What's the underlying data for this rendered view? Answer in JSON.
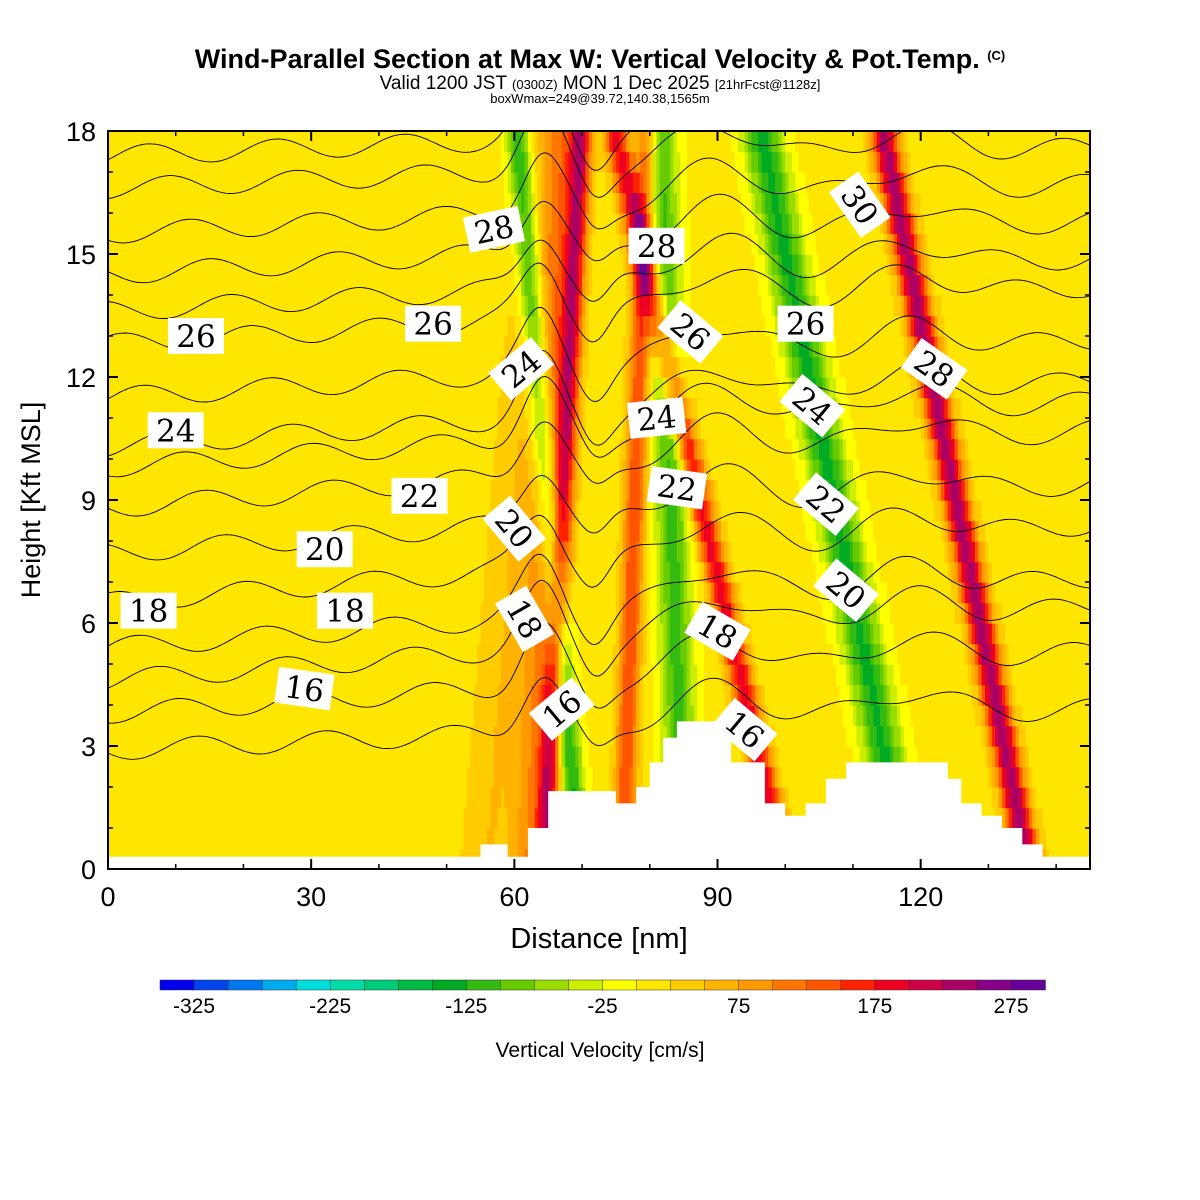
{
  "header": {
    "title": "Wind-Parallel Section at Max W: Vertical Velocity & Pot.Temp.",
    "copyright_mark": "(C)",
    "valid_main": "Valid 1200 JST",
    "valid_utc": "(0300Z)",
    "valid_date": "MON 1 Dec 2025",
    "forecast_tag": "[21hrFcst@1128z]",
    "box_info": "boxWmax=249@39.72,140.38,1565m"
  },
  "chart_data": {
    "type": "heatmap",
    "xlabel": "Distance [nm]",
    "ylabel": "Height [Kft MSL]",
    "xlim": [
      0,
      145
    ],
    "ylim": [
      0,
      18
    ],
    "x_ticks": [
      "0",
      "30",
      "60",
      "90",
      "120"
    ],
    "y_ticks": [
      "0",
      "3",
      "6",
      "9",
      "12",
      "15",
      "18"
    ],
    "colorbar": {
      "label": "Vertical Velocity [cm/s]",
      "tick_labels": [
        "-325",
        "-225",
        "-125",
        "-25",
        "75",
        "175",
        "275"
      ],
      "levels": [
        -350,
        -325,
        -300,
        -275,
        -250,
        -225,
        -200,
        -175,
        -150,
        -125,
        -100,
        -75,
        -50,
        -25,
        0,
        25,
        50,
        75,
        100,
        125,
        150,
        175,
        200,
        225,
        250,
        275,
        300
      ],
      "colors": [
        "#0000ee",
        "#0044ee",
        "#0077ee",
        "#00aaee",
        "#00dddd",
        "#00ddaa",
        "#00cc77",
        "#00bb44",
        "#00aa22",
        "#33bb11",
        "#66cc00",
        "#99dd00",
        "#ccee00",
        "#ffff00",
        "#ffe600",
        "#ffcc00",
        "#ffb300",
        "#ff9900",
        "#ff7700",
        "#ff5500",
        "#ff2200",
        "#ee0022",
        "#cc0044",
        "#aa0066",
        "#880088",
        "#660099"
      ]
    },
    "background_w": 10,
    "bands": [
      {
        "x0": 56,
        "slope": 0.5,
        "w": 4,
        "peak": 40
      },
      {
        "x0": 62,
        "slope": 0.3,
        "w": 2.5,
        "peak": 80
      },
      {
        "x0": 64.5,
        "slope": 0.3,
        "w": 1.6,
        "peak": 190
      },
      {
        "x0": 69.5,
        "slope": -0.5,
        "w": 1.8,
        "peak": -140
      },
      {
        "x0": 76,
        "slope": 0.2,
        "w": 1.6,
        "peak": 140
      },
      {
        "x0": 85,
        "slope": -0.2,
        "w": 2.5,
        "peak": -120
      },
      {
        "x0": 100,
        "slope": -1.4,
        "w": 1.8,
        "peak": 180
      },
      {
        "x0": 118,
        "slope": -1.2,
        "w": 3,
        "peak": -140
      },
      {
        "x0": 136,
        "slope": -1.2,
        "w": 2,
        "peak": 230
      }
    ],
    "terrain": [
      [
        0,
        0.3
      ],
      [
        55,
        0.3
      ],
      [
        55,
        0.6
      ],
      [
        59,
        0.6
      ],
      [
        59,
        0.3
      ],
      [
        62,
        0.3
      ],
      [
        62,
        1
      ],
      [
        65,
        1
      ],
      [
        65,
        1.9
      ],
      [
        75,
        1.9
      ],
      [
        75,
        1.6
      ],
      [
        78,
        1.6
      ],
      [
        78,
        2
      ],
      [
        80,
        2
      ],
      [
        80,
        2.6
      ],
      [
        82,
        2.6
      ],
      [
        82,
        3.2
      ],
      [
        84,
        3.2
      ],
      [
        84,
        3.6
      ],
      [
        92,
        3.6
      ],
      [
        92,
        2.6
      ],
      [
        95,
        2.6
      ],
      [
        95,
        2.6
      ],
      [
        97,
        2.6
      ],
      [
        97,
        1.6
      ],
      [
        100,
        1.6
      ],
      [
        100,
        1.3
      ],
      [
        103,
        1.3
      ],
      [
        103,
        1.6
      ],
      [
        106,
        1.6
      ],
      [
        106,
        2.2
      ],
      [
        109,
        2.2
      ],
      [
        109,
        2.6
      ],
      [
        113,
        2.6
      ],
      [
        113,
        2.6
      ],
      [
        120,
        2.6
      ],
      [
        124,
        2.6
      ],
      [
        124,
        2.2
      ],
      [
        126,
        2.2
      ],
      [
        126,
        1.6
      ],
      [
        129,
        1.6
      ],
      [
        129,
        1.3
      ],
      [
        132,
        1.3
      ],
      [
        132,
        1
      ],
      [
        135,
        1
      ],
      [
        135,
        0.6
      ],
      [
        138,
        0.6
      ],
      [
        138,
        0.3
      ],
      [
        145,
        0.3
      ]
    ],
    "isentropes": [
      {
        "level": 16,
        "base": 2.9,
        "rise": 1.0
      },
      {
        "level": 17,
        "base": 3.8,
        "rise": 1.5
      },
      {
        "level": 18,
        "base": 4.6,
        "rise": 1.8
      },
      {
        "level": 19,
        "base": 5.4,
        "rise": 1.7
      },
      {
        "level": 20,
        "base": 6.5,
        "rise": 1.9
      },
      {
        "level": 21,
        "base": 7.7,
        "rise": 1.7
      },
      {
        "level": 22,
        "base": 8.8,
        "rise": 1.9
      },
      {
        "level": 23,
        "base": 9.8,
        "rise": 1.6
      },
      {
        "level": 24,
        "base": 10.3,
        "rise": 1.6
      },
      {
        "level": 25,
        "base": 11.5,
        "rise": 1.4
      },
      {
        "level": 26,
        "base": 12.8,
        "rise": 1.4
      },
      {
        "level": 27,
        "base": 13.6,
        "rise": 1.3
      },
      {
        "level": 28,
        "base": 14.5,
        "rise": 1.3
      },
      {
        "level": 29,
        "base": 15.5,
        "rise": 1.2
      },
      {
        "level": 30,
        "base": 16.6,
        "rise": 1.0
      },
      {
        "level": 31,
        "base": 17.4,
        "rise": 0.9
      }
    ],
    "contour_labels": [
      {
        "text": "16",
        "x": 29,
        "y": 4.4,
        "angle": 8
      },
      {
        "text": "18",
        "x": 6,
        "y": 6.3,
        "angle": 0
      },
      {
        "text": "18",
        "x": 35,
        "y": 6.3,
        "angle": 0
      },
      {
        "text": "20",
        "x": 32,
        "y": 7.8,
        "angle": 0
      },
      {
        "text": "22",
        "x": 46,
        "y": 9.1,
        "angle": 0
      },
      {
        "text": "24",
        "x": 10,
        "y": 10.7,
        "angle": 0
      },
      {
        "text": "26",
        "x": 13,
        "y": 13.0,
        "angle": 0
      },
      {
        "text": "26",
        "x": 48,
        "y": 13.3,
        "angle": 0
      },
      {
        "text": "28",
        "x": 57,
        "y": 15.6,
        "angle": -12
      },
      {
        "text": "24",
        "x": 61,
        "y": 12.2,
        "angle": -40
      },
      {
        "text": "20",
        "x": 60,
        "y": 8.3,
        "angle": 50
      },
      {
        "text": "18",
        "x": 61.5,
        "y": 6.1,
        "angle": 60
      },
      {
        "text": "16",
        "x": 67,
        "y": 3.9,
        "angle": -40
      },
      {
        "text": "28",
        "x": 81,
        "y": 15.2,
        "angle": 0
      },
      {
        "text": "26",
        "x": 86,
        "y": 13.1,
        "angle": 40
      },
      {
        "text": "24",
        "x": 81,
        "y": 11.0,
        "angle": -6
      },
      {
        "text": "22",
        "x": 84,
        "y": 9.3,
        "angle": 8
      },
      {
        "text": "18",
        "x": 90,
        "y": 5.8,
        "angle": 30
      },
      {
        "text": "16",
        "x": 94,
        "y": 3.4,
        "angle": 40
      },
      {
        "text": "26",
        "x": 103,
        "y": 13.3,
        "angle": 0
      },
      {
        "text": "24",
        "x": 104,
        "y": 11.3,
        "angle": 40
      },
      {
        "text": "22",
        "x": 106,
        "y": 8.9,
        "angle": 40
      },
      {
        "text": "20",
        "x": 109,
        "y": 6.8,
        "angle": 40
      },
      {
        "text": "30",
        "x": 111,
        "y": 16.2,
        "angle": 55
      },
      {
        "text": "28",
        "x": 122,
        "y": 12.2,
        "angle": 35
      }
    ]
  }
}
